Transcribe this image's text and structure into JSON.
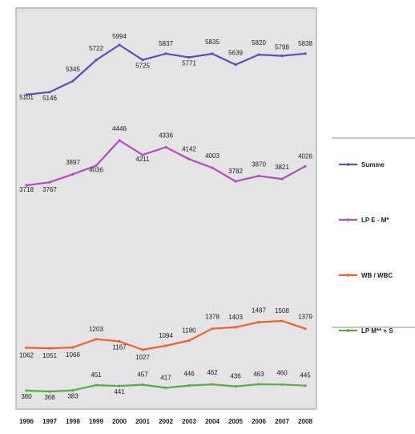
{
  "chart_data": {
    "type": "line",
    "title": "",
    "xlabel": "",
    "ylabel": "",
    "grid": false,
    "legend_placement": "right",
    "x": [
      "1996",
      "1997",
      "1998",
      "1999",
      "2000",
      "2001",
      "2002",
      "2003",
      "2004",
      "2005",
      "2006",
      "2007",
      "2008"
    ],
    "series": [
      {
        "name": "Summe",
        "color": "#5b4fb8",
        "values": [
          5101,
          5146,
          5345,
          5722,
          5994,
          5725,
          5837,
          5771,
          5835,
          5639,
          5820,
          5798,
          5838
        ],
        "labels": [
          "5101",
          "5146",
          "5345",
          "5722",
          "5994",
          "5725",
          "5837",
          "5771",
          "5835",
          "5639",
          "5820",
          "5798",
          "5838"
        ]
      },
      {
        "name": "LP E - M*",
        "color": "#b04fb8",
        "values": [
          3718,
          3767,
          3897,
          4036,
          4446,
          4211,
          4336,
          4142,
          4003,
          3782,
          3870,
          3821,
          4026
        ],
        "labels": [
          "3718",
          "3767",
          "3897",
          "4036",
          "4446",
          "4211",
          "4336",
          "4142",
          "4003",
          "3782",
          "3870",
          "3821",
          "4026"
        ]
      },
      {
        "name": "WB / WBC",
        "color": "#f0602a",
        "values": [
          1062,
          1051,
          1066,
          1203,
          1167,
          1027,
          1094,
          1180,
          1378,
          1403,
          1487,
          1508,
          1379
        ],
        "labels": [
          "1062",
          "1051",
          "1066",
          "1203",
          "1167",
          "1027",
          "1094",
          "1180",
          "1378",
          "1403",
          "1487",
          "1508",
          "1379"
        ]
      },
      {
        "name": "LP M** + S",
        "color": "#5aaa45",
        "values": [
          380,
          368,
          383,
          451,
          441,
          457,
          417,
          446,
          462,
          436,
          463,
          460,
          445
        ],
        "labels": [
          "380",
          "368",
          "383",
          "451",
          "441",
          "457",
          "417",
          "446",
          "462",
          "436",
          "463",
          "460",
          "445"
        ]
      }
    ]
  }
}
